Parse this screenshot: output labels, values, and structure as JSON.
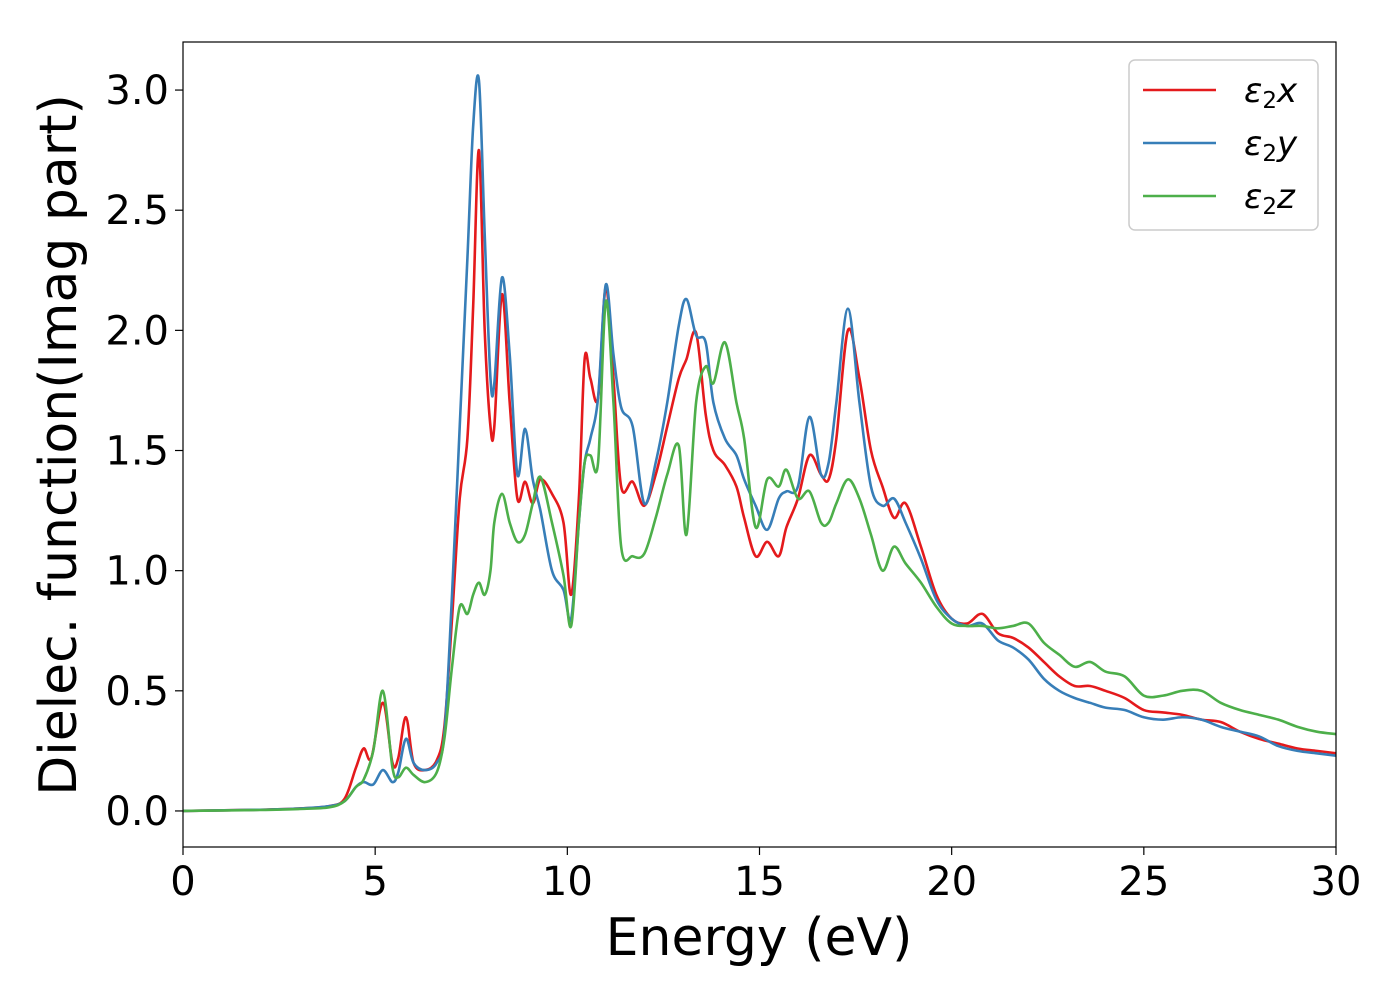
{
  "chart_data": {
    "type": "line",
    "title": "",
    "xlabel": "Energy (eV)",
    "ylabel": "Dielec. function(Imag part)",
    "xlim": [
      0,
      30
    ],
    "ylim": [
      -0.15,
      3.2
    ],
    "xticks": [
      "0",
      "5",
      "10",
      "15",
      "20",
      "25",
      "30"
    ],
    "xtick_values": [
      0,
      5,
      10,
      15,
      20,
      25,
      30
    ],
    "yticks": [
      "0.0",
      "0.5",
      "1.0",
      "1.5",
      "2.0",
      "2.5",
      "3.0"
    ],
    "ytick_values": [
      0,
      0.5,
      1.0,
      1.5,
      2.0,
      2.5,
      3.0
    ],
    "grid": false,
    "legend_position": "top-right",
    "series": [
      {
        "name": "ε2x",
        "legend_main": "ε",
        "legend_sub": "2",
        "legend_tail": "x",
        "color": "#e41a1c",
        "points": [
          [
            0,
            0
          ],
          [
            2,
            0.005
          ],
          [
            3,
            0.01
          ],
          [
            3.8,
            0.02
          ],
          [
            4.2,
            0.05
          ],
          [
            4.5,
            0.18
          ],
          [
            4.7,
            0.26
          ],
          [
            4.9,
            0.22
          ],
          [
            5.2,
            0.45
          ],
          [
            5.45,
            0.2
          ],
          [
            5.6,
            0.22
          ],
          [
            5.8,
            0.39
          ],
          [
            6.0,
            0.2
          ],
          [
            6.3,
            0.17
          ],
          [
            6.6,
            0.21
          ],
          [
            6.8,
            0.35
          ],
          [
            7.0,
            0.8
          ],
          [
            7.2,
            1.3
          ],
          [
            7.4,
            1.55
          ],
          [
            7.55,
            2.1
          ],
          [
            7.7,
            2.75
          ],
          [
            7.85,
            2.0
          ],
          [
            8.0,
            1.6
          ],
          [
            8.1,
            1.6
          ],
          [
            8.3,
            2.15
          ],
          [
            8.5,
            1.7
          ],
          [
            8.7,
            1.3
          ],
          [
            8.9,
            1.37
          ],
          [
            9.1,
            1.28
          ],
          [
            9.3,
            1.38
          ],
          [
            9.6,
            1.32
          ],
          [
            9.9,
            1.2
          ],
          [
            10.1,
            0.9
          ],
          [
            10.3,
            1.3
          ],
          [
            10.45,
            1.88
          ],
          [
            10.6,
            1.8
          ],
          [
            10.8,
            1.72
          ],
          [
            11.0,
            2.18
          ],
          [
            11.2,
            1.8
          ],
          [
            11.4,
            1.35
          ],
          [
            11.7,
            1.37
          ],
          [
            12.0,
            1.27
          ],
          [
            12.3,
            1.4
          ],
          [
            12.6,
            1.6
          ],
          [
            12.9,
            1.8
          ],
          [
            13.1,
            1.88
          ],
          [
            13.35,
            1.99
          ],
          [
            13.6,
            1.65
          ],
          [
            13.8,
            1.5
          ],
          [
            14.1,
            1.44
          ],
          [
            14.4,
            1.35
          ],
          [
            14.6,
            1.22
          ],
          [
            14.9,
            1.06
          ],
          [
            15.2,
            1.12
          ],
          [
            15.5,
            1.06
          ],
          [
            15.7,
            1.18
          ],
          [
            16.0,
            1.3
          ],
          [
            16.3,
            1.48
          ],
          [
            16.6,
            1.4
          ],
          [
            16.8,
            1.38
          ],
          [
            17.0,
            1.55
          ],
          [
            17.3,
            2.0
          ],
          [
            17.6,
            1.8
          ],
          [
            17.9,
            1.5
          ],
          [
            18.2,
            1.35
          ],
          [
            18.5,
            1.22
          ],
          [
            18.8,
            1.28
          ],
          [
            19.2,
            1.1
          ],
          [
            19.6,
            0.9
          ],
          [
            20.0,
            0.8
          ],
          [
            20.4,
            0.78
          ],
          [
            20.8,
            0.82
          ],
          [
            21.2,
            0.74
          ],
          [
            21.6,
            0.72
          ],
          [
            22.0,
            0.68
          ],
          [
            22.4,
            0.62
          ],
          [
            22.8,
            0.56
          ],
          [
            23.2,
            0.52
          ],
          [
            23.6,
            0.52
          ],
          [
            24.0,
            0.5
          ],
          [
            24.5,
            0.47
          ],
          [
            25.0,
            0.42
          ],
          [
            25.5,
            0.41
          ],
          [
            26.0,
            0.4
          ],
          [
            26.5,
            0.38
          ],
          [
            27.0,
            0.37
          ],
          [
            27.5,
            0.33
          ],
          [
            28.0,
            0.3
          ],
          [
            28.5,
            0.28
          ],
          [
            29.0,
            0.26
          ],
          [
            29.5,
            0.25
          ],
          [
            30.0,
            0.24
          ]
        ]
      },
      {
        "name": "ε2y",
        "legend_main": "ε",
        "legend_sub": "2",
        "legend_tail": "y",
        "color": "#377eb8",
        "points": [
          [
            0,
            0
          ],
          [
            2,
            0.005
          ],
          [
            3,
            0.01
          ],
          [
            3.8,
            0.02
          ],
          [
            4.2,
            0.04
          ],
          [
            4.5,
            0.1
          ],
          [
            4.7,
            0.12
          ],
          [
            4.95,
            0.11
          ],
          [
            5.2,
            0.17
          ],
          [
            5.45,
            0.12
          ],
          [
            5.6,
            0.16
          ],
          [
            5.8,
            0.3
          ],
          [
            6.0,
            0.2
          ],
          [
            6.3,
            0.17
          ],
          [
            6.6,
            0.2
          ],
          [
            6.8,
            0.32
          ],
          [
            7.0,
            0.9
          ],
          [
            7.2,
            1.6
          ],
          [
            7.4,
            2.3
          ],
          [
            7.55,
            2.85
          ],
          [
            7.7,
            3.04
          ],
          [
            7.85,
            2.4
          ],
          [
            8.0,
            1.8
          ],
          [
            8.1,
            1.78
          ],
          [
            8.3,
            2.22
          ],
          [
            8.5,
            1.9
          ],
          [
            8.7,
            1.4
          ],
          [
            8.9,
            1.59
          ],
          [
            9.1,
            1.38
          ],
          [
            9.3,
            1.25
          ],
          [
            9.6,
            1.0
          ],
          [
            9.9,
            0.92
          ],
          [
            10.1,
            0.8
          ],
          [
            10.3,
            1.2
          ],
          [
            10.45,
            1.45
          ],
          [
            10.6,
            1.55
          ],
          [
            10.8,
            1.72
          ],
          [
            11.0,
            2.19
          ],
          [
            11.2,
            1.9
          ],
          [
            11.4,
            1.68
          ],
          [
            11.7,
            1.6
          ],
          [
            12.0,
            1.28
          ],
          [
            12.3,
            1.45
          ],
          [
            12.6,
            1.7
          ],
          [
            12.9,
            2.02
          ],
          [
            13.1,
            2.13
          ],
          [
            13.35,
            1.98
          ],
          [
            13.6,
            1.95
          ],
          [
            13.8,
            1.7
          ],
          [
            14.1,
            1.55
          ],
          [
            14.4,
            1.48
          ],
          [
            14.6,
            1.38
          ],
          [
            14.9,
            1.27
          ],
          [
            15.2,
            1.17
          ],
          [
            15.5,
            1.3
          ],
          [
            15.7,
            1.33
          ],
          [
            16.0,
            1.35
          ],
          [
            16.3,
            1.64
          ],
          [
            16.6,
            1.4
          ],
          [
            16.8,
            1.45
          ],
          [
            17.0,
            1.7
          ],
          [
            17.3,
            2.09
          ],
          [
            17.6,
            1.7
          ],
          [
            17.9,
            1.35
          ],
          [
            18.2,
            1.27
          ],
          [
            18.5,
            1.3
          ],
          [
            18.8,
            1.2
          ],
          [
            19.2,
            1.05
          ],
          [
            19.6,
            0.88
          ],
          [
            20.0,
            0.8
          ],
          [
            20.4,
            0.77
          ],
          [
            20.8,
            0.78
          ],
          [
            21.2,
            0.71
          ],
          [
            21.6,
            0.68
          ],
          [
            22.0,
            0.63
          ],
          [
            22.4,
            0.55
          ],
          [
            22.8,
            0.5
          ],
          [
            23.2,
            0.47
          ],
          [
            23.6,
            0.45
          ],
          [
            24.0,
            0.43
          ],
          [
            24.5,
            0.42
          ],
          [
            25.0,
            0.39
          ],
          [
            25.5,
            0.38
          ],
          [
            26.0,
            0.39
          ],
          [
            26.5,
            0.38
          ],
          [
            27.0,
            0.35
          ],
          [
            27.5,
            0.33
          ],
          [
            28.0,
            0.31
          ],
          [
            28.5,
            0.27
          ],
          [
            29.0,
            0.25
          ],
          [
            29.5,
            0.24
          ],
          [
            30.0,
            0.23
          ]
        ]
      },
      {
        "name": "ε2z",
        "legend_main": "ε",
        "legend_sub": "2",
        "legend_tail": "z",
        "color": "#4daf4a",
        "points": [
          [
            0,
            0
          ],
          [
            2,
            0.004
          ],
          [
            3,
            0.008
          ],
          [
            3.8,
            0.015
          ],
          [
            4.2,
            0.04
          ],
          [
            4.5,
            0.1
          ],
          [
            4.7,
            0.13
          ],
          [
            4.95,
            0.25
          ],
          [
            5.2,
            0.5
          ],
          [
            5.45,
            0.18
          ],
          [
            5.6,
            0.14
          ],
          [
            5.8,
            0.18
          ],
          [
            6.0,
            0.15
          ],
          [
            6.3,
            0.12
          ],
          [
            6.6,
            0.16
          ],
          [
            6.8,
            0.3
          ],
          [
            7.0,
            0.6
          ],
          [
            7.2,
            0.85
          ],
          [
            7.4,
            0.82
          ],
          [
            7.55,
            0.9
          ],
          [
            7.7,
            0.95
          ],
          [
            7.85,
            0.9
          ],
          [
            8.0,
            1.0
          ],
          [
            8.1,
            1.2
          ],
          [
            8.3,
            1.32
          ],
          [
            8.5,
            1.2
          ],
          [
            8.7,
            1.12
          ],
          [
            8.9,
            1.15
          ],
          [
            9.1,
            1.28
          ],
          [
            9.3,
            1.39
          ],
          [
            9.6,
            1.2
          ],
          [
            9.9,
            0.98
          ],
          [
            10.1,
            0.77
          ],
          [
            10.3,
            1.2
          ],
          [
            10.45,
            1.45
          ],
          [
            10.6,
            1.48
          ],
          [
            10.8,
            1.45
          ],
          [
            11.0,
            2.12
          ],
          [
            11.2,
            1.7
          ],
          [
            11.4,
            1.1
          ],
          [
            11.7,
            1.06
          ],
          [
            12.0,
            1.07
          ],
          [
            12.3,
            1.22
          ],
          [
            12.6,
            1.4
          ],
          [
            12.9,
            1.52
          ],
          [
            13.1,
            1.15
          ],
          [
            13.35,
            1.7
          ],
          [
            13.6,
            1.85
          ],
          [
            13.8,
            1.78
          ],
          [
            14.1,
            1.95
          ],
          [
            14.4,
            1.7
          ],
          [
            14.6,
            1.55
          ],
          [
            14.9,
            1.18
          ],
          [
            15.2,
            1.38
          ],
          [
            15.5,
            1.35
          ],
          [
            15.7,
            1.42
          ],
          [
            16.0,
            1.3
          ],
          [
            16.3,
            1.33
          ],
          [
            16.6,
            1.2
          ],
          [
            16.8,
            1.2
          ],
          [
            17.0,
            1.28
          ],
          [
            17.3,
            1.38
          ],
          [
            17.6,
            1.3
          ],
          [
            17.9,
            1.15
          ],
          [
            18.2,
            1.0
          ],
          [
            18.5,
            1.1
          ],
          [
            18.8,
            1.03
          ],
          [
            19.2,
            0.95
          ],
          [
            19.6,
            0.85
          ],
          [
            20.0,
            0.78
          ],
          [
            20.4,
            0.77
          ],
          [
            20.8,
            0.77
          ],
          [
            21.2,
            0.76
          ],
          [
            21.6,
            0.77
          ],
          [
            22.0,
            0.78
          ],
          [
            22.4,
            0.7
          ],
          [
            22.8,
            0.65
          ],
          [
            23.2,
            0.6
          ],
          [
            23.6,
            0.62
          ],
          [
            24.0,
            0.58
          ],
          [
            24.5,
            0.56
          ],
          [
            25.0,
            0.48
          ],
          [
            25.5,
            0.48
          ],
          [
            26.0,
            0.5
          ],
          [
            26.5,
            0.5
          ],
          [
            27.0,
            0.45
          ],
          [
            27.5,
            0.42
          ],
          [
            28.0,
            0.4
          ],
          [
            28.5,
            0.38
          ],
          [
            29.0,
            0.35
          ],
          [
            29.5,
            0.33
          ],
          [
            30.0,
            0.32
          ]
        ]
      }
    ]
  }
}
